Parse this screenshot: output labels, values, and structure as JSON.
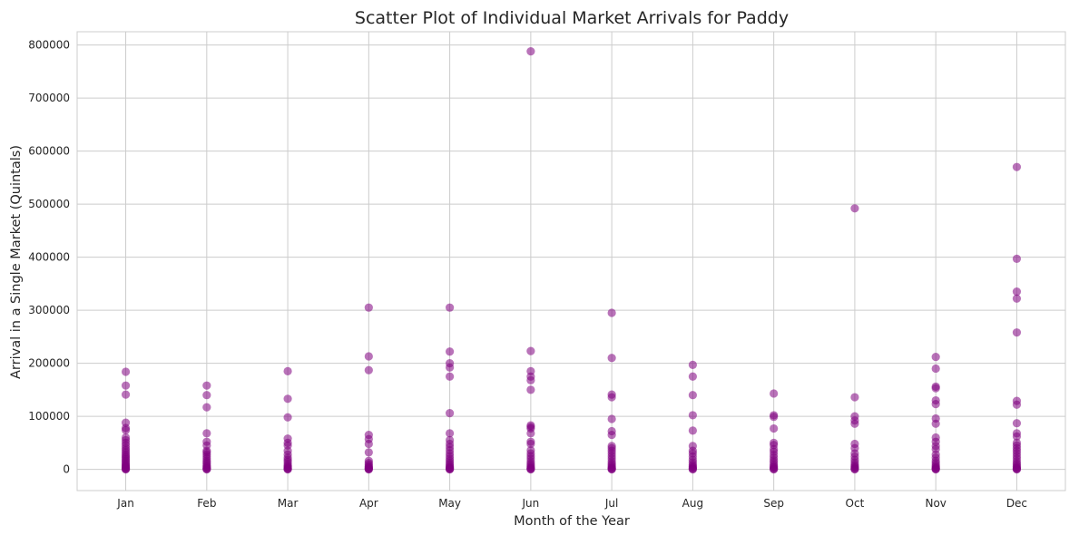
{
  "chart_data": {
    "type": "scatter",
    "title": "Scatter Plot of Individual Market Arrivals for Paddy",
    "xlabel": "Month of the Year",
    "ylabel": "Arrival in a Single Market (Quintals)",
    "categories": [
      "Jan",
      "Feb",
      "Mar",
      "Apr",
      "May",
      "Jun",
      "Jul",
      "Aug",
      "Sep",
      "Oct",
      "Nov",
      "Dec"
    ],
    "ylim": [
      -40000,
      825000
    ],
    "yticks": [
      0,
      100000,
      200000,
      300000,
      400000,
      500000,
      600000,
      700000,
      800000
    ],
    "ytick_labels": [
      "0",
      "100000",
      "200000",
      "300000",
      "400000",
      "500000",
      "600000",
      "700000",
      "800000"
    ],
    "grid": true,
    "marker_color": "#800080",
    "marker_alpha": 0.55,
    "series": [
      {
        "values": [
          [
            1,
            184000
          ],
          [
            1,
            158000
          ],
          [
            1,
            141000
          ],
          [
            1,
            88000
          ],
          [
            1,
            78000
          ],
          [
            1,
            74000
          ],
          [
            1,
            60000
          ],
          [
            1,
            55000
          ],
          [
            1,
            50000
          ],
          [
            1,
            45000
          ],
          [
            1,
            40000
          ],
          [
            1,
            36000
          ],
          [
            1,
            32000
          ],
          [
            1,
            28000
          ],
          [
            1,
            25000
          ],
          [
            1,
            22000
          ],
          [
            1,
            19000
          ],
          [
            1,
            16000
          ],
          [
            1,
            13000
          ],
          [
            1,
            10000
          ],
          [
            1,
            8000
          ],
          [
            1,
            6000
          ],
          [
            1,
            4000
          ],
          [
            1,
            2500
          ],
          [
            1,
            1200
          ],
          [
            1,
            500
          ],
          [
            1,
            0
          ],
          [
            2,
            158000
          ],
          [
            2,
            140000
          ],
          [
            2,
            117000
          ],
          [
            2,
            68000
          ],
          [
            2,
            52000
          ],
          [
            2,
            45000
          ],
          [
            2,
            35000
          ],
          [
            2,
            32000
          ],
          [
            2,
            28000
          ],
          [
            2,
            24000
          ],
          [
            2,
            20000
          ],
          [
            2,
            16000
          ],
          [
            2,
            13000
          ],
          [
            2,
            10000
          ],
          [
            2,
            7000
          ],
          [
            2,
            5000
          ],
          [
            2,
            3000
          ],
          [
            2,
            1500
          ],
          [
            2,
            500
          ],
          [
            2,
            0
          ],
          [
            3,
            185000
          ],
          [
            3,
            133000
          ],
          [
            3,
            98000
          ],
          [
            3,
            58000
          ],
          [
            3,
            50000
          ],
          [
            3,
            45000
          ],
          [
            3,
            35000
          ],
          [
            3,
            28000
          ],
          [
            3,
            22000
          ],
          [
            3,
            18000
          ],
          [
            3,
            14000
          ],
          [
            3,
            10000
          ],
          [
            3,
            7000
          ],
          [
            3,
            5000
          ],
          [
            3,
            3000
          ],
          [
            3,
            1500
          ],
          [
            3,
            500
          ],
          [
            3,
            0
          ],
          [
            4,
            305000
          ],
          [
            4,
            213000
          ],
          [
            4,
            187000
          ],
          [
            4,
            65000
          ],
          [
            4,
            57000
          ],
          [
            4,
            48000
          ],
          [
            4,
            32000
          ],
          [
            4,
            16000
          ],
          [
            4,
            12000
          ],
          [
            4,
            9000
          ],
          [
            4,
            6000
          ],
          [
            4,
            4000
          ],
          [
            4,
            2500
          ],
          [
            4,
            1200
          ],
          [
            4,
            400
          ],
          [
            4,
            0
          ],
          [
            5,
            305000
          ],
          [
            5,
            222000
          ],
          [
            5,
            200000
          ],
          [
            5,
            192000
          ],
          [
            5,
            175000
          ],
          [
            5,
            106000
          ],
          [
            5,
            68000
          ],
          [
            5,
            55000
          ],
          [
            5,
            48000
          ],
          [
            5,
            42000
          ],
          [
            5,
            36000
          ],
          [
            5,
            30000
          ],
          [
            5,
            25000
          ],
          [
            5,
            20000
          ],
          [
            5,
            16000
          ],
          [
            5,
            12000
          ],
          [
            5,
            9000
          ],
          [
            5,
            6000
          ],
          [
            5,
            4000
          ],
          [
            5,
            2500
          ],
          [
            5,
            1200
          ],
          [
            5,
            400
          ],
          [
            5,
            0
          ],
          [
            6,
            788000
          ],
          [
            6,
            223000
          ],
          [
            6,
            185000
          ],
          [
            6,
            175000
          ],
          [
            6,
            168000
          ],
          [
            6,
            150000
          ],
          [
            6,
            83000
          ],
          [
            6,
            80000
          ],
          [
            6,
            77000
          ],
          [
            6,
            68000
          ],
          [
            6,
            52000
          ],
          [
            6,
            48000
          ],
          [
            6,
            36000
          ],
          [
            6,
            30000
          ],
          [
            6,
            25000
          ],
          [
            6,
            20000
          ],
          [
            6,
            15000
          ],
          [
            6,
            11000
          ],
          [
            6,
            8000
          ],
          [
            6,
            5000
          ],
          [
            6,
            3000
          ],
          [
            6,
            1500
          ],
          [
            6,
            500
          ],
          [
            6,
            0
          ],
          [
            7,
            295000
          ],
          [
            7,
            210000
          ],
          [
            7,
            141000
          ],
          [
            7,
            136000
          ],
          [
            7,
            95000
          ],
          [
            7,
            72000
          ],
          [
            7,
            65000
          ],
          [
            7,
            44000
          ],
          [
            7,
            40000
          ],
          [
            7,
            35000
          ],
          [
            7,
            30000
          ],
          [
            7,
            25000
          ],
          [
            7,
            20000
          ],
          [
            7,
            15000
          ],
          [
            7,
            11000
          ],
          [
            7,
            8000
          ],
          [
            7,
            5000
          ],
          [
            7,
            3000
          ],
          [
            7,
            1500
          ],
          [
            7,
            500
          ],
          [
            7,
            0
          ],
          [
            8,
            197000
          ],
          [
            8,
            175000
          ],
          [
            8,
            140000
          ],
          [
            8,
            102000
          ],
          [
            8,
            73000
          ],
          [
            8,
            44000
          ],
          [
            8,
            35000
          ],
          [
            8,
            30000
          ],
          [
            8,
            24000
          ],
          [
            8,
            18000
          ],
          [
            8,
            13000
          ],
          [
            8,
            9000
          ],
          [
            8,
            6000
          ],
          [
            8,
            4000
          ],
          [
            8,
            2000
          ],
          [
            8,
            800
          ],
          [
            8,
            0
          ],
          [
            9,
            143000
          ],
          [
            9,
            102000
          ],
          [
            9,
            99000
          ],
          [
            9,
            77000
          ],
          [
            9,
            50000
          ],
          [
            9,
            46000
          ],
          [
            9,
            38000
          ],
          [
            9,
            33000
          ],
          [
            9,
            27000
          ],
          [
            9,
            22000
          ],
          [
            9,
            17000
          ],
          [
            9,
            13000
          ],
          [
            9,
            9000
          ],
          [
            9,
            6000
          ],
          [
            9,
            4000
          ],
          [
            9,
            2000
          ],
          [
            9,
            800
          ],
          [
            9,
            0
          ],
          [
            10,
            492000
          ],
          [
            10,
            136000
          ],
          [
            10,
            100000
          ],
          [
            10,
            92000
          ],
          [
            10,
            86000
          ],
          [
            10,
            48000
          ],
          [
            10,
            40000
          ],
          [
            10,
            30000
          ],
          [
            10,
            24000
          ],
          [
            10,
            18000
          ],
          [
            10,
            13000
          ],
          [
            10,
            9000
          ],
          [
            10,
            6000
          ],
          [
            10,
            4000
          ],
          [
            10,
            2000
          ],
          [
            10,
            800
          ],
          [
            10,
            0
          ],
          [
            11,
            212000
          ],
          [
            11,
            190000
          ],
          [
            11,
            156000
          ],
          [
            11,
            153000
          ],
          [
            11,
            130000
          ],
          [
            11,
            123000
          ],
          [
            11,
            96000
          ],
          [
            11,
            86000
          ],
          [
            11,
            60000
          ],
          [
            11,
            52000
          ],
          [
            11,
            44000
          ],
          [
            11,
            38000
          ],
          [
            11,
            28000
          ],
          [
            11,
            22000
          ],
          [
            11,
            16000
          ],
          [
            11,
            12000
          ],
          [
            11,
            8000
          ],
          [
            11,
            5000
          ],
          [
            11,
            3000
          ],
          [
            11,
            1500
          ],
          [
            11,
            500
          ],
          [
            11,
            0
          ],
          [
            12,
            570000
          ],
          [
            12,
            397000
          ],
          [
            12,
            335000
          ],
          [
            12,
            322000
          ],
          [
            12,
            258000
          ],
          [
            12,
            129000
          ],
          [
            12,
            122000
          ],
          [
            12,
            87000
          ],
          [
            12,
            68000
          ],
          [
            12,
            62000
          ],
          [
            12,
            50000
          ],
          [
            12,
            45000
          ],
          [
            12,
            40000
          ],
          [
            12,
            35000
          ],
          [
            12,
            30000
          ],
          [
            12,
            25000
          ],
          [
            12,
            20000
          ],
          [
            12,
            15000
          ],
          [
            12,
            11000
          ],
          [
            12,
            8000
          ],
          [
            12,
            5000
          ],
          [
            12,
            3000
          ],
          [
            12,
            1500
          ],
          [
            12,
            500
          ],
          [
            12,
            0
          ]
        ]
      }
    ]
  }
}
